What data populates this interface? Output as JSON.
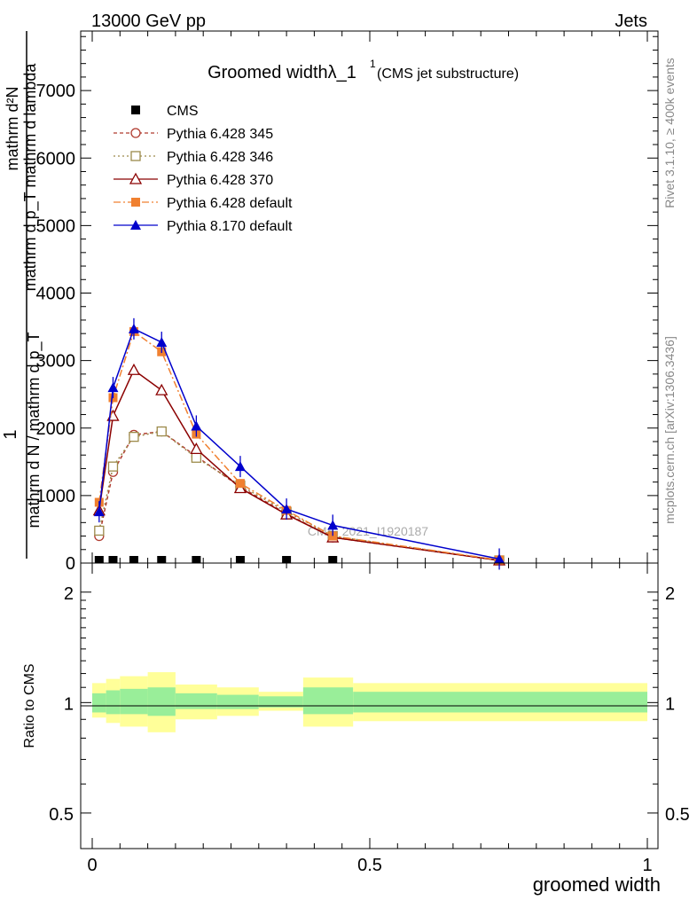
{
  "header": {
    "left": "13000 GeV pp",
    "right": "Jets"
  },
  "side_labels": {
    "rivet": "Rivet 3.1.10, ≥ 400k events",
    "mcplots": "mcplots.cern.ch [arXiv:1306.3436]"
  },
  "chart_data": [
    {
      "type": "line",
      "title": "Groomed widthλ_1",
      "title_sup": "1",
      "subtitle": "(CMS jet substructure)",
      "watermark": "CMS_2021_I1920187",
      "ylabel_numerator": "mathrm d²N",
      "ylabel_numerator_extra": "mathrm d p_T mathrm d lambda",
      "ylabel_denominator": "mathrm d N / mathrm d p_T",
      "ylabel_prefix": "1",
      "ylim": [
        0,
        8000
      ],
      "xlim": [
        -0.02,
        1.0
      ],
      "y_ticks": [
        0,
        1000,
        2000,
        3000,
        4000,
        5000,
        6000,
        7000
      ],
      "y_tick_labels": [
        "0",
        "1000",
        "2000",
        "3000",
        "4000",
        "5000",
        "6000",
        "7000"
      ],
      "legend_placement": "top-left",
      "x": [
        0.0125,
        0.0375,
        0.075,
        0.125,
        0.1875,
        0.2667,
        0.35,
        0.4333,
        0.7333
      ],
      "series": [
        {
          "name": "CMS",
          "color": "#000000",
          "marker": "square-filled",
          "dash": "none",
          "values": [
            null,
            null,
            null,
            null,
            null,
            null,
            null,
            null,
            null
          ],
          "baseline_markers": [
            0.0125,
            0.0375,
            0.075,
            0.125,
            0.1875,
            0.2667,
            0.35,
            0.4333
          ]
        },
        {
          "name": "Pythia 6.428 345",
          "color": "#b03a2e",
          "marker": "circle-open",
          "dash": "4,3",
          "values": [
            400,
            1350,
            1900,
            1950,
            1580,
            1130,
            730,
            380,
            40
          ]
        },
        {
          "name": "Pythia 6.428 346",
          "color": "#9c8a4a",
          "marker": "square-open",
          "dash": "2,3",
          "values": [
            480,
            1430,
            1870,
            1950,
            1560,
            1150,
            760,
            400,
            40
          ]
        },
        {
          "name": "Pythia 6.428 370",
          "color": "#8b0000",
          "marker": "triangle-open",
          "dash": "none",
          "values": [
            780,
            2180,
            2860,
            2560,
            1690,
            1110,
            720,
            380,
            40
          ]
        },
        {
          "name": "Pythia 6.428 default",
          "color": "#f08030",
          "marker": "square-filled",
          "dash": "8,3,2,3",
          "values": [
            900,
            2450,
            3430,
            3130,
            1910,
            1180,
            780,
            400,
            45
          ]
        },
        {
          "name": "Pythia 8.170 default",
          "color": "#0000cc",
          "marker": "triangle-filled",
          "dash": "none",
          "values": [
            760,
            2600,
            3470,
            3270,
            2030,
            1430,
            800,
            560,
            60
          ]
        }
      ]
    },
    {
      "type": "area",
      "ylabel": "Ratio to CMS",
      "xlabel": "groomed width",
      "scale": "log",
      "ylim": [
        0.4,
        2.4
      ],
      "y_tick_labels": [
        "0.5",
        "1",
        "2"
      ],
      "y_ticks": [
        0.5,
        1,
        2
      ],
      "x_tick_labels": [
        "0",
        "0.5",
        "1"
      ],
      "x_ticks": [
        0,
        0.5,
        1
      ],
      "bins": [
        {
          "x0": 0.0,
          "x1": 0.025,
          "inner": [
            0.94,
            1.06
          ],
          "outer": [
            0.91,
            1.13
          ]
        },
        {
          "x0": 0.025,
          "x1": 0.05,
          "inner": [
            0.93,
            1.08
          ],
          "outer": [
            0.88,
            1.16
          ]
        },
        {
          "x0": 0.05,
          "x1": 0.1,
          "inner": [
            0.93,
            1.09
          ],
          "outer": [
            0.86,
            1.18
          ]
        },
        {
          "x0": 0.1,
          "x1": 0.15,
          "inner": [
            0.92,
            1.1
          ],
          "outer": [
            0.83,
            1.21
          ]
        },
        {
          "x0": 0.15,
          "x1": 0.225,
          "inner": [
            0.96,
            1.06
          ],
          "outer": [
            0.9,
            1.12
          ]
        },
        {
          "x0": 0.225,
          "x1": 0.3,
          "inner": [
            0.96,
            1.05
          ],
          "outer": [
            0.92,
            1.1
          ]
        },
        {
          "x0": 0.3,
          "x1": 0.38,
          "inner": [
            0.97,
            1.04
          ],
          "outer": [
            0.95,
            1.07
          ]
        },
        {
          "x0": 0.38,
          "x1": 0.47,
          "inner": [
            0.93,
            1.1
          ],
          "outer": [
            0.86,
            1.17
          ]
        },
        {
          "x0": 0.47,
          "x1": 1.0,
          "inner": [
            0.94,
            1.07
          ],
          "outer": [
            0.89,
            1.13
          ]
        }
      ],
      "colors": {
        "inner": "#99ee99",
        "outer": "#ffff99"
      }
    }
  ]
}
